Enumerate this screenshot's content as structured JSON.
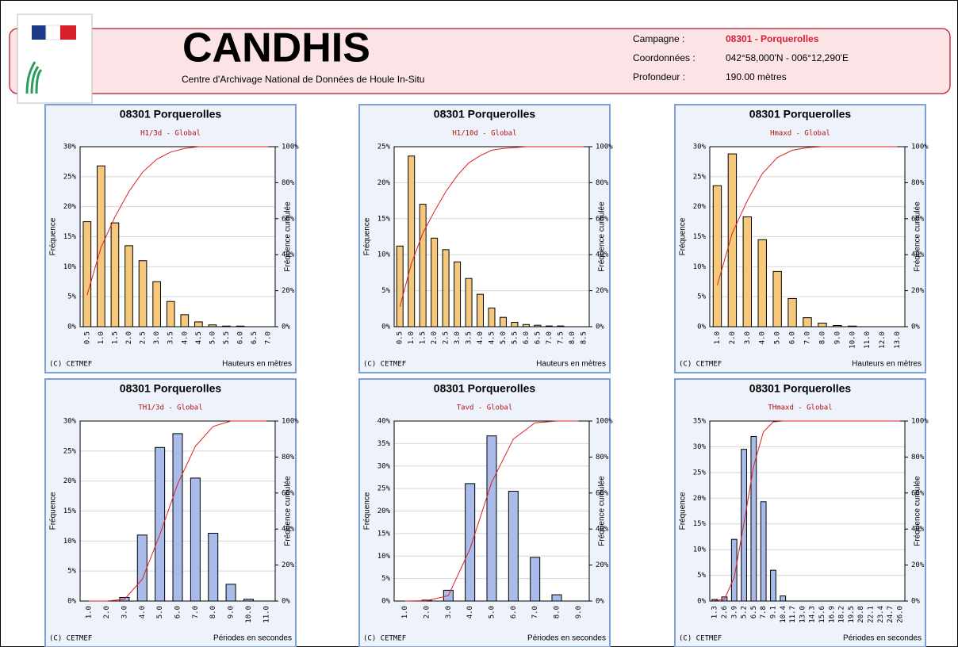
{
  "header": {
    "title": "CANDHIS",
    "subtitle": "Centre d'Archivage National de Données de Houle In-Situ",
    "info": [
      {
        "label": "Campagne :",
        "value": "08301 - Porquerolles"
      },
      {
        "label": "Coordonnées :",
        "value": "042°58,000'N - 006°12,290'E"
      },
      {
        "label": "Profondeur :",
        "value": "190.00 mètres"
      }
    ]
  },
  "chart_data": [
    {
      "type": "bar",
      "title": "08301 Porquerolles",
      "subtitle": "H1/3d - Global",
      "ylabel": "Fréquence",
      "y2label": "Fréquence cumulée",
      "xlabel": "Hauteurs en mètres",
      "note": "(C) CETMEF",
      "grid": true,
      "categories": [
        "0.5",
        "1.0",
        "1.5",
        "2.0",
        "2.5",
        "3.0",
        "3.5",
        "4.0",
        "4.5",
        "5.0",
        "5.5",
        "6.0",
        "6.5",
        "7.0"
      ],
      "series": [
        {
          "color": "#f6c87c",
          "axis": "y",
          "values": [
            17.5,
            26.8,
            17.3,
            13.5,
            11,
            7.5,
            4.2,
            2,
            0.8,
            0.3,
            0.1,
            0.1,
            0,
            0
          ]
        },
        {
          "type": "line",
          "color": "#e02020",
          "axis": "y2",
          "values": [
            17.5,
            44,
            61,
            75,
            86,
            93,
            97,
            99,
            100,
            100,
            100,
            100,
            100,
            100
          ]
        }
      ],
      "ylim": [
        0,
        30
      ],
      "yticks": [
        {
          "value": 0,
          "label": "0%"
        },
        {
          "value": 5,
          "label": "5%"
        },
        {
          "value": 10,
          "label": "10%"
        },
        {
          "value": 15,
          "label": "15%"
        },
        {
          "value": 20,
          "label": "20%"
        },
        {
          "value": 25,
          "label": "25%"
        },
        {
          "value": 30,
          "label": "30%"
        }
      ],
      "y2lim": [
        0,
        100
      ],
      "y2ticks": [
        {
          "value": 0,
          "label": "0%"
        },
        {
          "value": 20,
          "label": "20%"
        },
        {
          "value": 40,
          "label": "40%"
        },
        {
          "value": 60,
          "label": "60%"
        },
        {
          "value": 80,
          "label": "80%"
        },
        {
          "value": 100,
          "label": "100%"
        }
      ]
    },
    {
      "type": "bar",
      "title": "08301 Porquerolles",
      "subtitle": "H1/10d - Global",
      "ylabel": "Fréquence",
      "y2label": "Fréquence cumulée",
      "xlabel": "Hauteurs en mètres",
      "note": "(C) CETMEF",
      "grid": true,
      "categories": [
        "0.5",
        "1.0",
        "1.5",
        "2.0",
        "2.5",
        "3.0",
        "3.5",
        "4.0",
        "4.5",
        "5.0",
        "5.5",
        "6.0",
        "6.5",
        "7.0",
        "7.5",
        "8.0",
        "8.5"
      ],
      "series": [
        {
          "color": "#f6c87c",
          "axis": "y",
          "values": [
            11.2,
            23.7,
            17,
            12.3,
            10.7,
            9,
            6.7,
            4.5,
            2.6,
            1.3,
            0.6,
            0.3,
            0.2,
            0.1,
            0.1,
            0,
            0
          ]
        },
        {
          "type": "line",
          "color": "#e02020",
          "axis": "y2",
          "values": [
            11,
            35,
            52,
            64,
            75,
            84,
            91,
            95,
            98,
            99,
            99.5,
            100,
            100,
            100,
            100,
            100,
            100
          ]
        }
      ],
      "ylim": [
        0,
        25
      ],
      "yticks": [
        {
          "value": 0,
          "label": "0%"
        },
        {
          "value": 5,
          "label": "5%"
        },
        {
          "value": 10,
          "label": "10%"
        },
        {
          "value": 15,
          "label": "15%"
        },
        {
          "value": 20,
          "label": "20%"
        },
        {
          "value": 25,
          "label": "25%"
        }
      ],
      "y2lim": [
        0,
        100
      ],
      "y2ticks": [
        {
          "value": 0,
          "label": "0%"
        },
        {
          "value": 20,
          "label": "20%"
        },
        {
          "value": 40,
          "label": "40%"
        },
        {
          "value": 60,
          "label": "60%"
        },
        {
          "value": 80,
          "label": "80%"
        },
        {
          "value": 100,
          "label": "100%"
        }
      ]
    },
    {
      "type": "bar",
      "title": "08301 Porquerolles",
      "subtitle": "Hmaxd - Global",
      "ylabel": "Fréquence",
      "y2label": "Fréquence cumulée",
      "xlabel": "Hauteurs en mètres",
      "note": "(C) CETMEF",
      "grid": true,
      "categories": [
        "1.0",
        "2.0",
        "3.0",
        "4.0",
        "5.0",
        "6.0",
        "7.0",
        "8.0",
        "9.0",
        "10.0",
        "11.0",
        "12.0",
        "13.0"
      ],
      "series": [
        {
          "color": "#f6c87c",
          "axis": "y",
          "values": [
            23.5,
            28.8,
            18.3,
            14.5,
            9.2,
            4.7,
            1.5,
            0.6,
            0.2,
            0.1,
            0,
            0,
            0
          ]
        },
        {
          "type": "line",
          "color": "#e02020",
          "axis": "y2",
          "values": [
            23,
            52,
            70,
            85,
            94,
            98,
            99.5,
            100,
            100,
            100,
            100,
            100,
            100
          ]
        }
      ],
      "ylim": [
        0,
        30
      ],
      "yticks": [
        {
          "value": 0,
          "label": "0%"
        },
        {
          "value": 5,
          "label": "5%"
        },
        {
          "value": 10,
          "label": "10%"
        },
        {
          "value": 15,
          "label": "15%"
        },
        {
          "value": 20,
          "label": "20%"
        },
        {
          "value": 25,
          "label": "25%"
        },
        {
          "value": 30,
          "label": "30%"
        }
      ],
      "y2lim": [
        0,
        100
      ],
      "y2ticks": [
        {
          "value": 0,
          "label": "0%"
        },
        {
          "value": 20,
          "label": "20%"
        },
        {
          "value": 40,
          "label": "40%"
        },
        {
          "value": 60,
          "label": "60%"
        },
        {
          "value": 80,
          "label": "80%"
        },
        {
          "value": 100,
          "label": "100%"
        }
      ]
    },
    {
      "type": "bar",
      "title": "08301 Porquerolles",
      "subtitle": "TH1/3d - Global",
      "ylabel": "Fréquence",
      "y2label": "Fréquence cumulée",
      "xlabel": "Périodes en secondes",
      "note": "(C) CETMEF",
      "grid": true,
      "categories": [
        "1.0",
        "2.0",
        "3.0",
        "4.0",
        "5.0",
        "6.0",
        "7.0",
        "8.0",
        "9.0",
        "10.0",
        "11.0"
      ],
      "series": [
        {
          "color": "#a9bbe8",
          "axis": "y",
          "values": [
            0,
            0,
            0.6,
            11,
            25.6,
            27.9,
            20.5,
            11.3,
            2.8,
            0.3,
            0
          ]
        },
        {
          "type": "line",
          "color": "#e02020",
          "axis": "y2",
          "values": [
            0,
            0,
            1,
            12,
            37,
            65,
            86,
            97,
            100,
            100,
            100
          ]
        }
      ],
      "ylim": [
        0,
        30
      ],
      "yticks": [
        {
          "value": 0,
          "label": "0%"
        },
        {
          "value": 5,
          "label": "5%"
        },
        {
          "value": 10,
          "label": "10%"
        },
        {
          "value": 15,
          "label": "15%"
        },
        {
          "value": 20,
          "label": "20%"
        },
        {
          "value": 25,
          "label": "25%"
        },
        {
          "value": 30,
          "label": "30%"
        }
      ],
      "y2lim": [
        0,
        100
      ],
      "y2ticks": [
        {
          "value": 0,
          "label": "0%"
        },
        {
          "value": 20,
          "label": "20%"
        },
        {
          "value": 40,
          "label": "40%"
        },
        {
          "value": 60,
          "label": "60%"
        },
        {
          "value": 80,
          "label": "80%"
        },
        {
          "value": 100,
          "label": "100%"
        }
      ]
    },
    {
      "type": "bar",
      "title": "08301 Porquerolles",
      "subtitle": "Tavd - Global",
      "ylabel": "Fréquence",
      "y2label": "Fréquence cumulée",
      "xlabel": "Périodes en secondes",
      "note": "(C) CETMEF",
      "grid": true,
      "categories": [
        "1.0",
        "2.0",
        "3.0",
        "4.0",
        "5.0",
        "6.0",
        "7.0",
        "8.0",
        "9.0"
      ],
      "series": [
        {
          "color": "#a9bbe8",
          "axis": "y",
          "values": [
            0,
            0.2,
            2.4,
            26.1,
            36.7,
            24.4,
            9.7,
            1.4,
            0
          ]
        },
        {
          "type": "line",
          "color": "#e02020",
          "axis": "y2",
          "values": [
            0,
            0.2,
            3,
            29,
            66,
            90,
            99,
            100,
            100
          ]
        }
      ],
      "ylim": [
        0,
        40
      ],
      "yticks": [
        {
          "value": 0,
          "label": "0%"
        },
        {
          "value": 5,
          "label": "5%"
        },
        {
          "value": 10,
          "label": "10%"
        },
        {
          "value": 15,
          "label": "15%"
        },
        {
          "value": 20,
          "label": "20%"
        },
        {
          "value": 25,
          "label": "25%"
        },
        {
          "value": 30,
          "label": "30%"
        },
        {
          "value": 35,
          "label": "35%"
        },
        {
          "value": 40,
          "label": "40%"
        }
      ],
      "y2lim": [
        0,
        100
      ],
      "y2ticks": [
        {
          "value": 0,
          "label": "0%"
        },
        {
          "value": 20,
          "label": "20%"
        },
        {
          "value": 40,
          "label": "40%"
        },
        {
          "value": 60,
          "label": "60%"
        },
        {
          "value": 80,
          "label": "80%"
        },
        {
          "value": 100,
          "label": "100%"
        }
      ]
    },
    {
      "type": "bar",
      "title": "08301 Porquerolles",
      "subtitle": "THmaxd - Global",
      "ylabel": "Fréquence",
      "y2label": "Fréquence cumulée",
      "xlabel": "Périodes en secondes",
      "note": "(C) CETMEF",
      "grid": true,
      "categories": [
        "1.3",
        "2.6",
        "3.9",
        "5.2",
        "6.5",
        "7.8",
        "9.1",
        "10.4",
        "11.7",
        "13.0",
        "14.3",
        "15.6",
        "16.9",
        "18.2",
        "19.5",
        "20.8",
        "22.1",
        "23.4",
        "24.7",
        "26.0"
      ],
      "series": [
        {
          "color": "#a9bbe8",
          "axis": "y",
          "values": [
            0.3,
            0.8,
            12,
            29.5,
            32,
            19.3,
            6,
            1,
            0,
            0,
            0,
            0,
            0,
            0,
            0,
            0,
            0,
            0,
            0,
            0
          ]
        },
        {
          "type": "line",
          "color": "#e02020",
          "axis": "y2",
          "values": [
            0.3,
            1,
            13,
            43,
            75,
            94,
            99.5,
            100,
            100,
            100,
            100,
            100,
            100,
            100,
            100,
            100,
            100,
            100,
            100,
            100
          ]
        }
      ],
      "ylim": [
        0,
        35
      ],
      "yticks": [
        {
          "value": 0,
          "label": "0%"
        },
        {
          "value": 5,
          "label": "5%"
        },
        {
          "value": 10,
          "label": "10%"
        },
        {
          "value": 15,
          "label": "15%"
        },
        {
          "value": 20,
          "label": "20%"
        },
        {
          "value": 25,
          "label": "25%"
        },
        {
          "value": 30,
          "label": "30%"
        },
        {
          "value": 35,
          "label": "35%"
        }
      ],
      "y2lim": [
        0,
        100
      ],
      "y2ticks": [
        {
          "value": 0,
          "label": "0%"
        },
        {
          "value": 20,
          "label": "20%"
        },
        {
          "value": 40,
          "label": "40%"
        },
        {
          "value": 60,
          "label": "60%"
        },
        {
          "value": 80,
          "label": "80%"
        },
        {
          "value": 100,
          "label": "100%"
        }
      ]
    }
  ]
}
